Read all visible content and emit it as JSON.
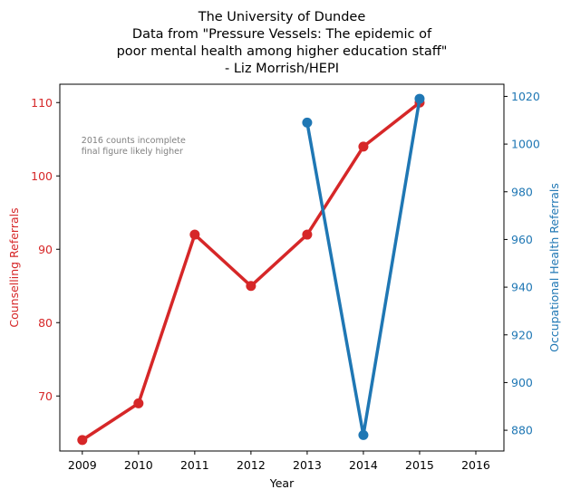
{
  "chart_data": {
    "type": "line",
    "title_lines": [
      "The University of Dundee",
      "Data from \"Pressure Vessels: The epidemic of",
      "poor mental health among higher education staff\"",
      "- Liz Morrish/HEPI"
    ],
    "xlabel": "Year",
    "ylabel_left": "Counselling Referrals",
    "ylabel_right": "Occupational Health Referrals",
    "x_ticks": [
      2009,
      2010,
      2011,
      2012,
      2013,
      2014,
      2015,
      2016
    ],
    "xlim": [
      2008.6,
      2016.5
    ],
    "y_left_ticks": [
      70,
      80,
      90,
      100,
      110
    ],
    "y_left_lim": [
      62.5,
      112.5
    ],
    "y_right_ticks": [
      880,
      900,
      920,
      940,
      960,
      980,
      1000,
      1020
    ],
    "y_right_lim": [
      871.3,
      1025.1
    ],
    "annotation": [
      "2016 counts incomplete",
      "final figure likely higher"
    ],
    "annotation_pos": {
      "x": 2009,
      "y_left": 104.5
    },
    "series": [
      {
        "axis": "left",
        "color": "#d62728",
        "x": [
          2009,
          2010,
          2011,
          2012,
          2013,
          2014,
          2015
        ],
        "values": [
          64,
          69,
          92,
          85,
          92,
          104,
          110
        ]
      },
      {
        "axis": "right",
        "color": "#1f77b4",
        "x": [
          2013,
          2014,
          2015
        ],
        "values": [
          1009,
          878,
          1019
        ]
      }
    ],
    "grid": false,
    "legend": "none"
  }
}
